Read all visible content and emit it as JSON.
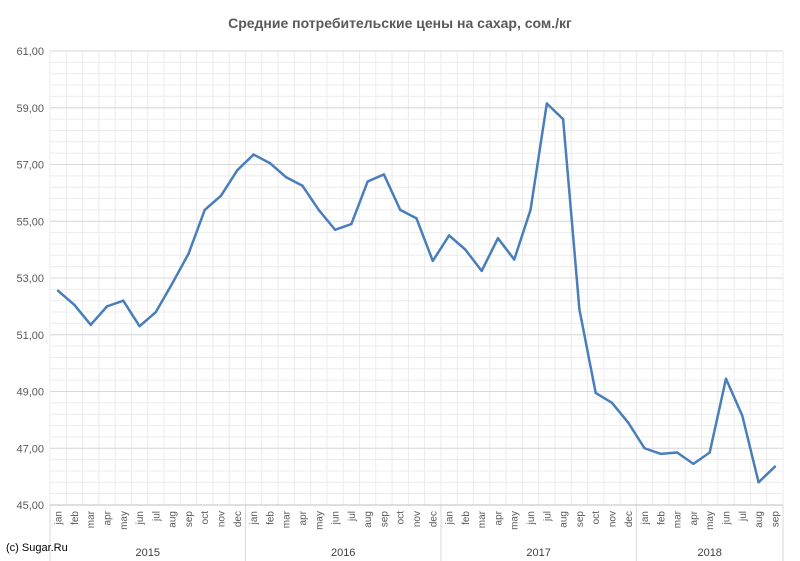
{
  "chart_data": {
    "type": "line",
    "title": "Средние потребительские цены на сахар, сом./кг",
    "credit": "(c) Sugar.Ru",
    "ylim": [
      45,
      61
    ],
    "yticks": [
      "45,00",
      "47,00",
      "49,00",
      "51,00",
      "53,00",
      "55,00",
      "57,00",
      "59,00",
      "61,00"
    ],
    "ytick_values": [
      45,
      47,
      49,
      51,
      53,
      55,
      57,
      59,
      61
    ],
    "grid": true,
    "line_color": "#4a7ebb",
    "grid_color": "#d9d9d9",
    "years": [
      "2015",
      "2016",
      "2017",
      "2018"
    ],
    "categories": [
      "jan",
      "feb",
      "mar",
      "apr",
      "may",
      "jun",
      "jul",
      "aug",
      "sep",
      "oct",
      "nov",
      "dec",
      "jan",
      "feb",
      "mar",
      "apr",
      "may",
      "jun",
      "jul",
      "aug",
      "sep",
      "oct",
      "nov",
      "dec",
      "jan",
      "feb",
      "mar",
      "apr",
      "may",
      "jun",
      "jul",
      "aug",
      "sep",
      "oct",
      "nov",
      "dec",
      "jan",
      "feb",
      "mar",
      "apr",
      "may",
      "jun",
      "jul",
      "aug",
      "sep"
    ],
    "series": [
      {
        "values": [
          52.55,
          52.05,
          51.35,
          52.0,
          52.2,
          51.3,
          51.8,
          52.8,
          53.85,
          55.4,
          55.9,
          56.8,
          57.35,
          57.05,
          56.55,
          56.25,
          55.4,
          54.7,
          54.9,
          56.4,
          56.65,
          55.4,
          55.1,
          53.6,
          54.5,
          54.0,
          53.25,
          54.4,
          53.65,
          55.4,
          59.15,
          58.6,
          51.9,
          48.95,
          48.6,
          47.9,
          47.0,
          46.8,
          46.85,
          46.45,
          46.85,
          49.45,
          48.15,
          45.8,
          46.35
        ]
      }
    ]
  }
}
